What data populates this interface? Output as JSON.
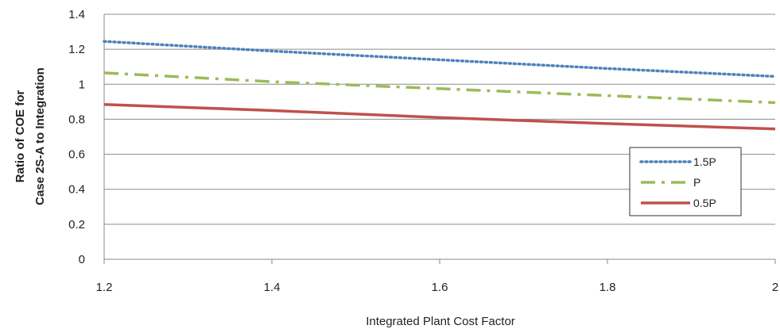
{
  "chart_data": {
    "type": "line",
    "xlabel": "Integrated Plant Cost Factor",
    "ylabel_lines": [
      "Ratio of COE  for",
      "Case 2S-A to Integration"
    ],
    "xlim": [
      1.2,
      2
    ],
    "ylim": [
      0,
      1.4
    ],
    "x_ticks": [
      "1.2",
      "1.4",
      "1.6",
      "1.8",
      "2"
    ],
    "y_ticks": [
      "0",
      "0.2",
      "0.4",
      "0.6",
      "0.8",
      "1",
      "1.2",
      "1.4"
    ],
    "grid": "horizontal",
    "legend_position": "right",
    "series": [
      {
        "name": "1.5P",
        "color": "#4F81BD",
        "style": "dotted",
        "x": [
          1.2,
          1.4,
          1.6,
          1.8,
          2.0
        ],
        "y": [
          1.245,
          1.19,
          1.14,
          1.09,
          1.045
        ]
      },
      {
        "name": "P",
        "color": "#9BBB59",
        "style": "dash-dot",
        "x": [
          1.2,
          1.4,
          1.6,
          1.8,
          2.0
        ],
        "y": [
          1.065,
          1.015,
          0.975,
          0.935,
          0.895
        ]
      },
      {
        "name": "0.5P",
        "color": "#C0504D",
        "style": "solid",
        "x": [
          1.2,
          1.4,
          1.6,
          1.8,
          2.0
        ],
        "y": [
          0.885,
          0.85,
          0.81,
          0.775,
          0.745
        ]
      }
    ]
  }
}
